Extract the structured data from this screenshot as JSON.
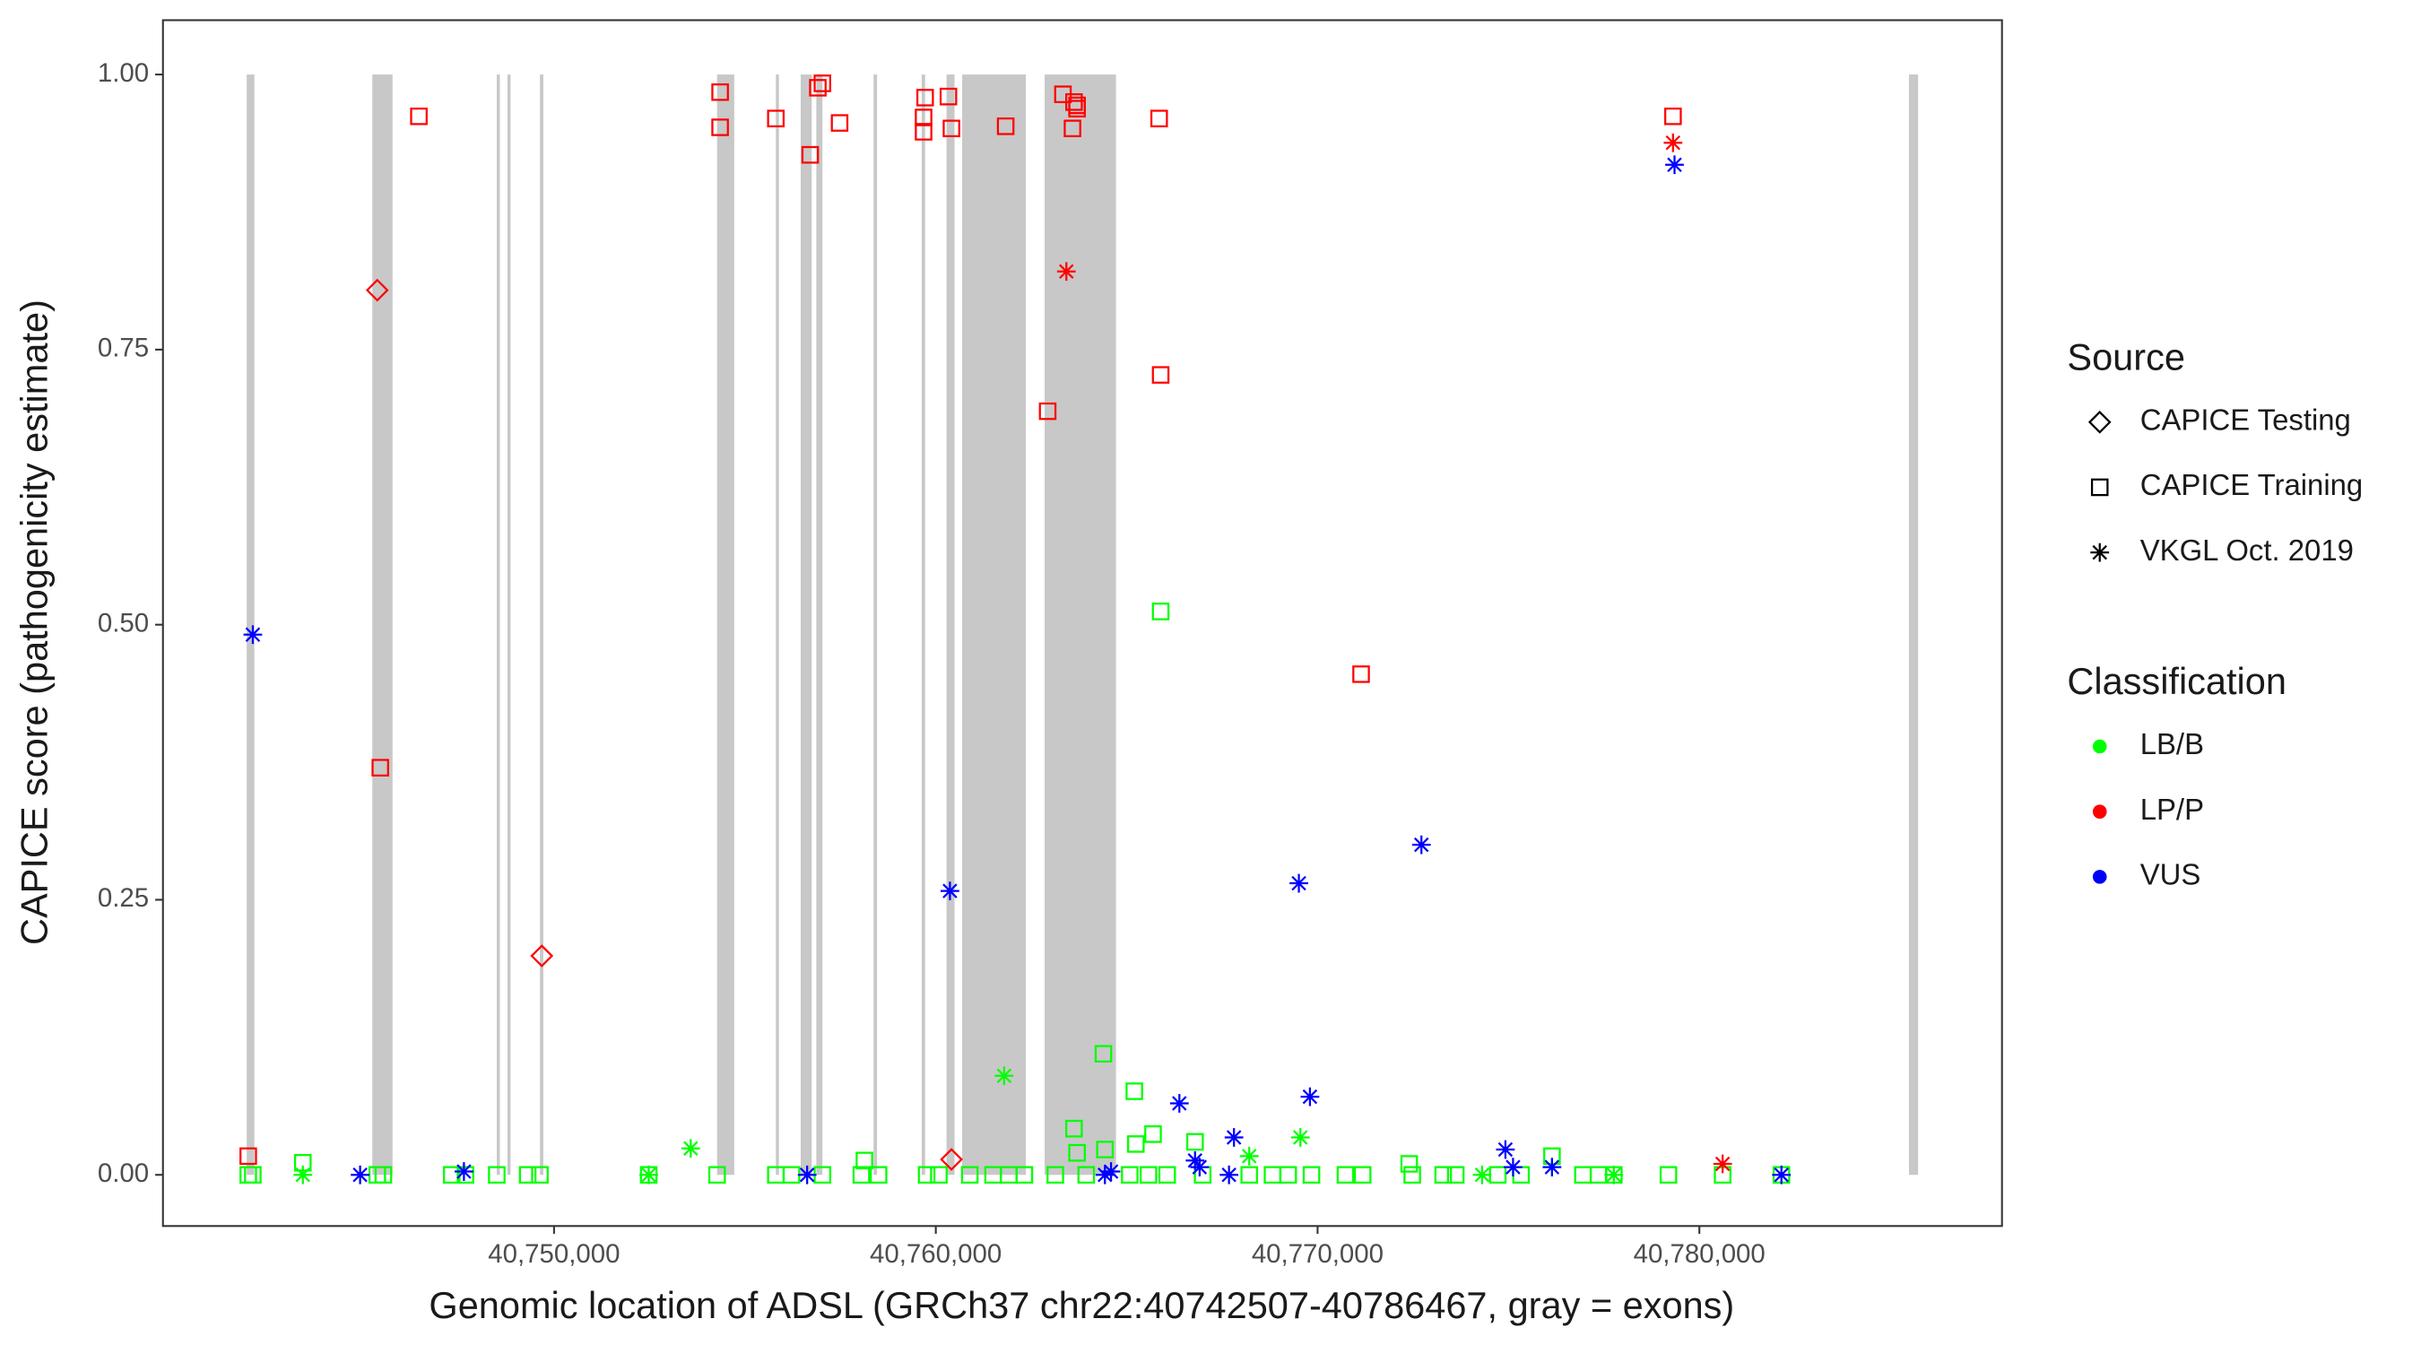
{
  "chart_data": {
    "type": "scatter",
    "x_label": "Genomic location of ADSL (GRCh37 chr22:40742507-40786467, gray = exons)",
    "y_label": "CAPICE score (pathogenicity estimate)",
    "xlim": [
      40739756,
      40787927
    ],
    "ylim": [
      -0.0465,
      1.0494
    ],
    "xticks": [
      {
        "value": 40750000,
        "label": "40,750,000"
      },
      {
        "value": 40760000,
        "label": "40,760,000"
      },
      {
        "value": 40770000,
        "label": "40,770,000"
      },
      {
        "value": 40780000,
        "label": "40,780,000"
      }
    ],
    "yticks": [
      {
        "value": 0,
        "label": "0.00"
      },
      {
        "value": 0.25,
        "label": "0.25"
      },
      {
        "value": 0.5,
        "label": "0.50"
      },
      {
        "value": 0.75,
        "label": "0.75"
      },
      {
        "value": 1,
        "label": "1.00"
      }
    ],
    "exon_color": "#c8c8c8",
    "exons": [
      [
        40741950,
        40742150
      ],
      [
        40745240,
        40745770
      ],
      [
        40748500,
        40748580
      ],
      [
        40748780,
        40748860
      ],
      [
        40749630,
        40749720
      ],
      [
        40754270,
        40754720
      ],
      [
        40755810,
        40755890
      ],
      [
        40756460,
        40756750
      ],
      [
        40756870,
        40757030
      ],
      [
        40758370,
        40758460
      ],
      [
        40759630,
        40759720
      ],
      [
        40760280,
        40760490
      ],
      [
        40760690,
        40762360
      ],
      [
        40762850,
        40764720
      ],
      [
        40785490,
        40785730
      ]
    ],
    "legend_source": {
      "title": "Source",
      "items": [
        {
          "name": "CAPICE Testing",
          "shape": "diamond"
        },
        {
          "name": "CAPICE Training",
          "shape": "square"
        },
        {
          "name": "VKGL Oct. 2019",
          "shape": "asterisk"
        }
      ]
    },
    "legend_classification": {
      "title": "Classification",
      "items": [
        {
          "name": "LB/B",
          "color": "#00ff00"
        },
        {
          "name": "LP/P",
          "color": "#ff0000"
        },
        {
          "name": "VUS",
          "color": "#0000ff"
        }
      ]
    },
    "series": [
      {
        "source": "CAPICE Training",
        "classification": "LB/B",
        "x": [
          40765890,
          40764390,
          40765200,
          40763620,
          40765690,
          40765240,
          40766790,
          40763700,
          40764430,
          40743420,
          40758130,
          40776140,
          40772400,
          40741990,
          40742110,
          40745370,
          40745530,
          40747320,
          40747680,
          40748500,
          40749310,
          40749630,
          40752480,
          40754270,
          40755810,
          40756220,
          40757030,
          40758050,
          40758500,
          40759760,
          40760080,
          40760890,
          40761500,
          40761910,
          40762320,
          40763130,
          40763940,
          40765080,
          40765570,
          40766060,
          40766990,
          40768210,
          40768820,
          40769230,
          40769840,
          40770730,
          40771180,
          40772480,
          40773290,
          40773620,
          40774720,
          40775330,
          40776950,
          40777360,
          40777760,
          40779190,
          40780610,
          40782150
        ],
        "values": [
          0.512,
          0.11,
          0.076,
          0.042,
          0.037,
          0.028,
          0.03,
          0.02,
          0.023,
          0.011,
          0.013,
          0.017,
          0.01,
          0,
          0,
          0,
          0,
          0,
          0,
          0,
          0,
          0,
          0,
          0,
          0,
          0,
          0,
          0,
          0,
          0,
          0,
          0,
          0,
          0,
          0,
          0,
          0,
          0,
          0,
          0,
          0,
          0,
          0,
          0,
          0,
          0,
          0,
          0,
          0,
          0,
          0,
          0,
          0,
          0,
          0,
          0,
          0,
          0
        ]
      },
      {
        "source": "CAPICE Training",
        "classification": "LP/P",
        "x": [
          40746460,
          40754350,
          40754350,
          40755810,
          40756710,
          40756910,
          40757030,
          40757480,
          40759720,
          40759680,
          40759680,
          40760330,
          40760410,
          40761830,
          40763330,
          40763580,
          40763620,
          40763700,
          40763700,
          40765850,
          40765890,
          40762930,
          40771140,
          40745450,
          40779310,
          40741990
        ],
        "values": [
          0.962,
          0.984,
          0.952,
          0.96,
          0.927,
          0.988,
          0.992,
          0.956,
          0.979,
          0.961,
          0.948,
          0.98,
          0.951,
          0.953,
          0.982,
          0.951,
          0.975,
          0.969,
          0.972,
          0.96,
          0.727,
          0.694,
          0.455,
          0.37,
          0.962,
          0.017
        ]
      },
      {
        "source": "CAPICE Testing",
        "classification": "LP/P",
        "x": [
          40745370,
          40749680,
          40760410
        ],
        "values": [
          0.804,
          0.199,
          0.014
        ]
      },
      {
        "source": "VKGL Oct. 2019",
        "classification": "LP/P",
        "x": [
          40763420,
          40779310,
          40780610
        ],
        "values": [
          0.821,
          0.938,
          0.01
        ]
      },
      {
        "source": "VKGL Oct. 2019",
        "classification": "LB/B",
        "x": [
          40761790,
          40769550,
          40753580,
          40768210,
          40743420,
          40752480,
          40774310,
          40777760
        ],
        "values": [
          0.09,
          0.034,
          0.024,
          0.017,
          0,
          0,
          0,
          0
        ]
      },
      {
        "source": "VKGL Oct. 2019",
        "classification": "VUS",
        "x": [
          40742110,
          40760370,
          40779350,
          40769510,
          40772720,
          40769800,
          40766380,
          40767810,
          40774920,
          40744920,
          40747640,
          40756630,
          40764430,
          40764590,
          40766790,
          40766910,
          40767680,
          40775120,
          40776140,
          40782150
        ],
        "values": [
          0.491,
          0.258,
          0.918,
          0.265,
          0.3,
          0.071,
          0.065,
          0.034,
          0.023,
          0,
          0.003,
          0,
          0,
          0.003,
          0.013,
          0.007,
          0,
          0.007,
          0.007,
          0
        ]
      }
    ]
  }
}
